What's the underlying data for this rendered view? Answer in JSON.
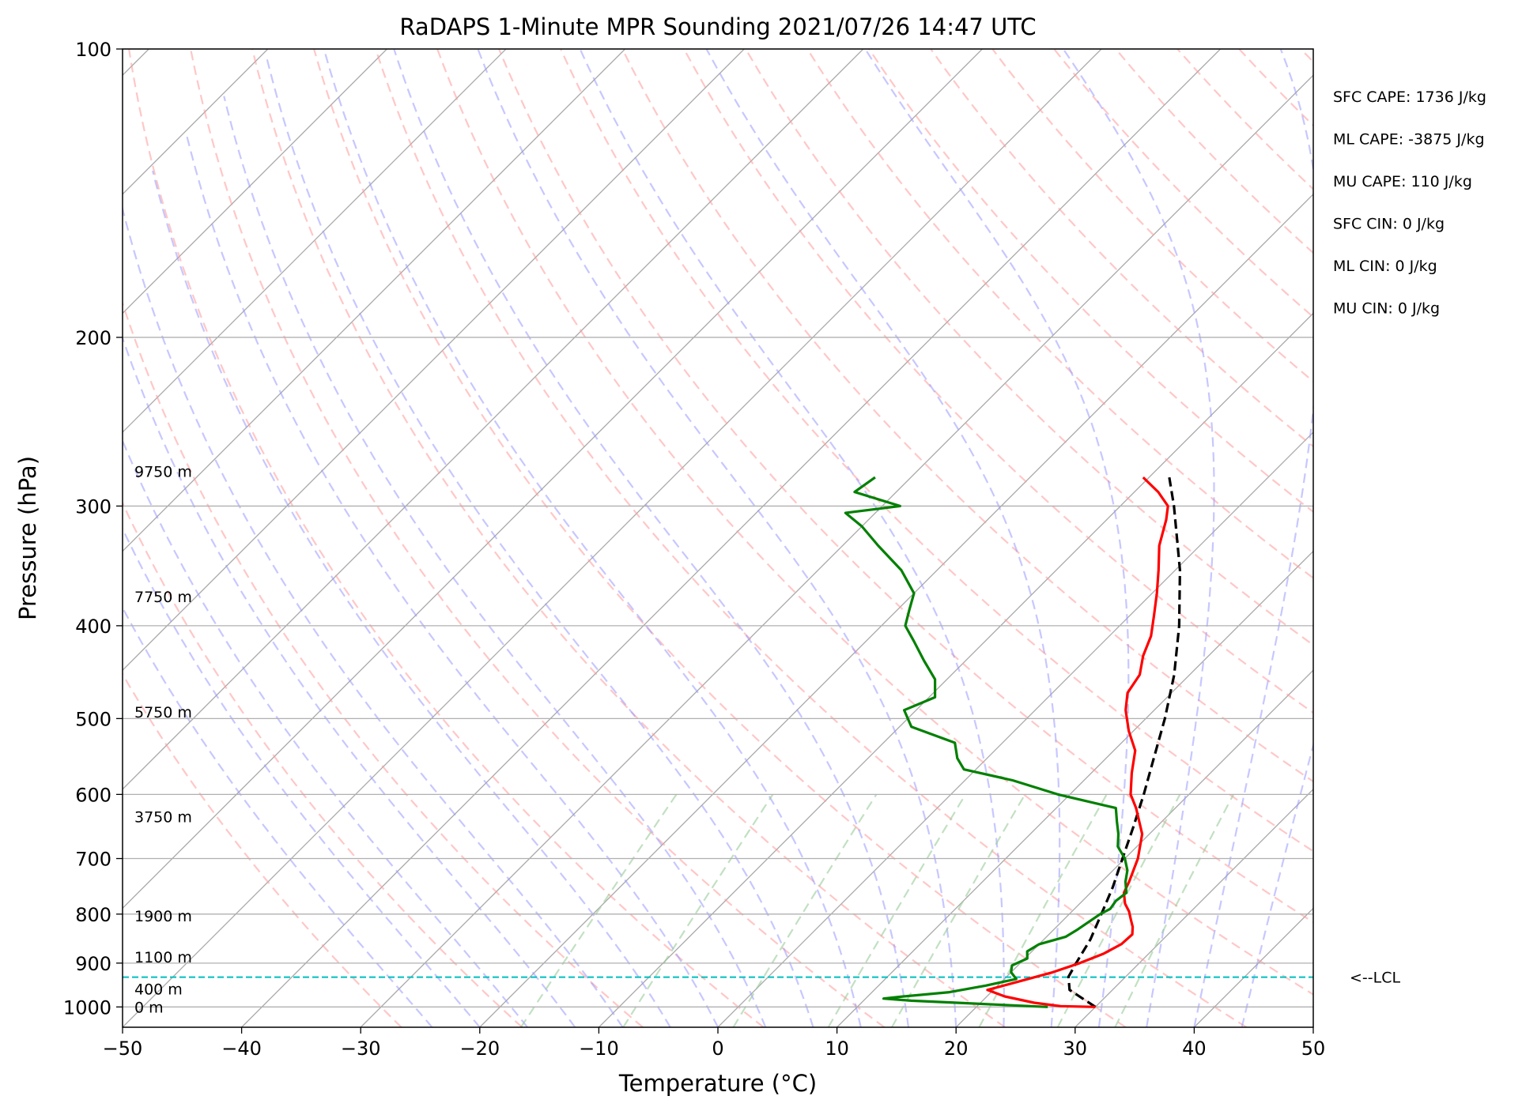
{
  "chart_data": {
    "type": "line",
    "title": "RaDAPS 1-Minute MPR Sounding 2021/07/26 14:47 UTC",
    "xlabel": "Temperature (°C)",
    "ylabel": "Pressure (hPa)",
    "xlim": [
      -50,
      50
    ],
    "ylim": [
      1050,
      100
    ],
    "y_scale": "log",
    "x_ticks": [
      -50,
      -40,
      -30,
      -20,
      -10,
      0,
      10,
      20,
      30,
      40,
      50
    ],
    "x_tick_labels": [
      "−50",
      "−40",
      "−30",
      "−20",
      "−10",
      "0",
      "10",
      "20",
      "30",
      "40",
      "50"
    ],
    "y_ticks": [
      100,
      200,
      300,
      400,
      500,
      600,
      700,
      800,
      900,
      1000
    ],
    "y_tick_labels": [
      "100",
      "200",
      "300",
      "400",
      "500",
      "600",
      "700",
      "800",
      "900",
      "1000"
    ],
    "skew_deg": 45,
    "grid": true,
    "series": [
      {
        "name": "",
        "kind": "temperature",
        "color": "#ff0000",
        "points": [
          [
            1000,
            30.0
          ],
          [
            998,
            27.0
          ],
          [
            990,
            24.5
          ],
          [
            975,
            21.5
          ],
          [
            960,
            19.5
          ],
          [
            940,
            21.5
          ],
          [
            920,
            23.5
          ],
          [
            900,
            25.0
          ],
          [
            880,
            26.2
          ],
          [
            860,
            26.9
          ],
          [
            840,
            27.0
          ],
          [
            825,
            26.4
          ],
          [
            810,
            25.6
          ],
          [
            795,
            24.8
          ],
          [
            780,
            23.8
          ],
          [
            760,
            22.8
          ],
          [
            740,
            22.3
          ],
          [
            700,
            21.1
          ],
          [
            660,
            19.4
          ],
          [
            620,
            16.7
          ],
          [
            600,
            15.1
          ],
          [
            570,
            13.4
          ],
          [
            540,
            11.8
          ],
          [
            515,
            9.6
          ],
          [
            490,
            7.6
          ],
          [
            470,
            6.3
          ],
          [
            450,
            5.8
          ],
          [
            430,
            4.5
          ],
          [
            410,
            3.5
          ],
          [
            390,
            2.0
          ],
          [
            370,
            0.4
          ],
          [
            350,
            -1.4
          ],
          [
            330,
            -3.4
          ],
          [
            310,
            -5.0
          ],
          [
            300,
            -6.0
          ],
          [
            290,
            -8.0
          ],
          [
            280,
            -10.5
          ]
        ]
      },
      {
        "name": "",
        "kind": "dewpoint",
        "color": "#008000",
        "points": [
          [
            1000,
            26.0
          ],
          [
            995,
            22.0
          ],
          [
            990,
            18.0
          ],
          [
            985,
            14.0
          ],
          [
            980,
            11.5
          ],
          [
            975,
            13.0
          ],
          [
            965,
            16.5
          ],
          [
            950,
            19.0
          ],
          [
            935,
            21.0
          ],
          [
            920,
            20.0
          ],
          [
            905,
            19.5
          ],
          [
            890,
            20.2
          ],
          [
            875,
            19.6
          ],
          [
            860,
            20.0
          ],
          [
            845,
            21.6
          ],
          [
            830,
            22.0
          ],
          [
            815,
            22.3
          ],
          [
            800,
            22.6
          ],
          [
            790,
            23.0
          ],
          [
            775,
            22.8
          ],
          [
            760,
            23.0
          ],
          [
            740,
            22.0
          ],
          [
            720,
            21.2
          ],
          [
            700,
            20.0
          ],
          [
            680,
            18.4
          ],
          [
            660,
            17.4
          ],
          [
            640,
            16.2
          ],
          [
            620,
            15.0
          ],
          [
            600,
            9.0
          ],
          [
            580,
            4.0
          ],
          [
            565,
            -1.0
          ],
          [
            550,
            -2.5
          ],
          [
            530,
            -4.0
          ],
          [
            510,
            -9.0
          ],
          [
            490,
            -11.0
          ],
          [
            475,
            -9.5
          ],
          [
            455,
            -11.0
          ],
          [
            435,
            -13.5
          ],
          [
            415,
            -16.0
          ],
          [
            400,
            -18.0
          ],
          [
            385,
            -19.0
          ],
          [
            370,
            -20.0
          ],
          [
            350,
            -23.0
          ],
          [
            330,
            -27.0
          ],
          [
            315,
            -30.0
          ],
          [
            305,
            -32.5
          ],
          [
            300,
            -28.5
          ],
          [
            290,
            -33.5
          ],
          [
            280,
            -33.0
          ]
        ]
      },
      {
        "name": "",
        "kind": "parcel",
        "color": "#000000",
        "points": [
          [
            1000,
            30.0
          ],
          [
            960,
            26.4
          ],
          [
            930,
            25.2
          ],
          [
            900,
            24.7
          ],
          [
            850,
            23.9
          ],
          [
            800,
            22.7
          ],
          [
            750,
            21.4
          ],
          [
            700,
            19.8
          ],
          [
            650,
            18.1
          ],
          [
            600,
            16.2
          ],
          [
            550,
            14.0
          ],
          [
            500,
            11.6
          ],
          [
            450,
            8.7
          ],
          [
            400,
            5.0
          ],
          [
            350,
            0.4
          ],
          [
            300,
            -5.5
          ],
          [
            280,
            -8.3
          ]
        ]
      }
    ],
    "lcl_pressure": 931,
    "lcl_label": "<--LCL",
    "height_labels": [
      {
        "pressure": 1000,
        "label": "0 m"
      },
      {
        "pressure": 958,
        "label": "400 m"
      },
      {
        "pressure": 887,
        "label": "1100 m"
      },
      {
        "pressure": 803,
        "label": "1900 m"
      },
      {
        "pressure": 633,
        "label": "3750 m"
      },
      {
        "pressure": 492,
        "label": "5750 m"
      },
      {
        "pressure": 373,
        "label": "7750 m"
      },
      {
        "pressure": 276,
        "label": "9750 m"
      }
    ],
    "stats": [
      "SFC CAPE: 1736 J/kg",
      "ML CAPE: -3875 J/kg",
      "MU CAPE: 110 J/kg",
      "SFC CIN: 0 J/kg",
      "ML CIN: 0 J/kg",
      "MU CIN: 0 J/kg"
    ],
    "colors": {
      "temperature": "#ff0000",
      "dewpoint": "#008000",
      "parcel": "#000000",
      "lcl_line": "#00bfbf",
      "dry_adiabats": "#ff9999",
      "moist_adiabats": "#9999ff",
      "mixing_ratio": "#99cc99",
      "grid": "#b0b0b0",
      "isotherms": "#a9a9a9"
    }
  }
}
